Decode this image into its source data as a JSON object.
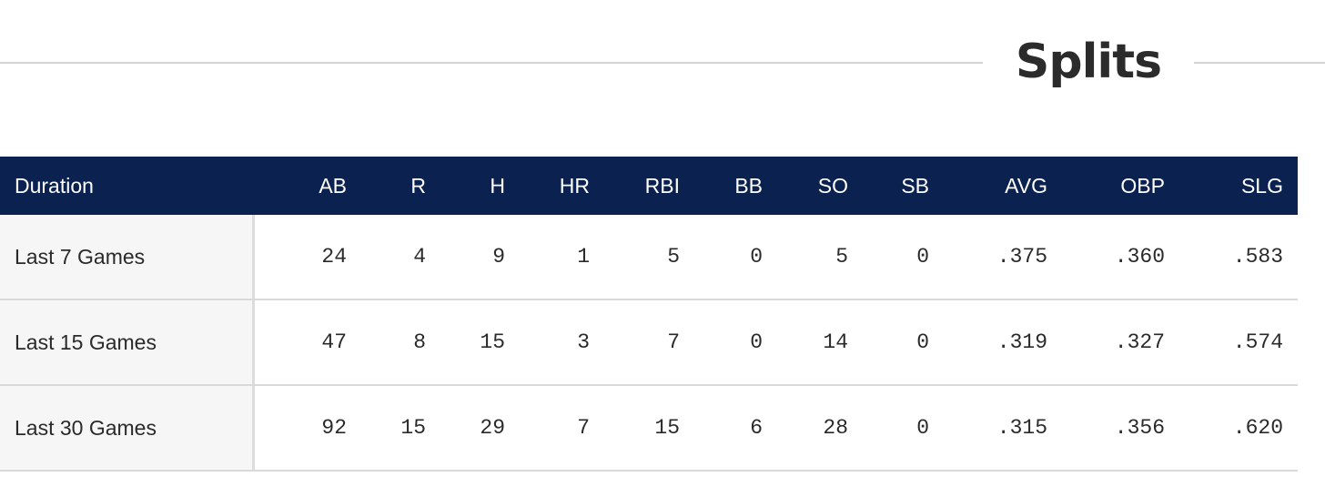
{
  "title": "Splits",
  "colors": {
    "header_bg": "#0b2150",
    "header_text": "#ffffff",
    "label_bg": "#f6f6f6",
    "rule": "#d4d4d4"
  },
  "table": {
    "headers": [
      "Duration",
      "AB",
      "R",
      "H",
      "HR",
      "RBI",
      "BB",
      "SO",
      "SB",
      "AVG",
      "OBP",
      "SLG"
    ],
    "rows": [
      {
        "duration": "Last 7 Games",
        "cells": [
          "24",
          "4",
          "9",
          "1",
          "5",
          "0",
          "5",
          "0",
          ".375",
          ".360",
          ".583"
        ]
      },
      {
        "duration": "Last 15 Games",
        "cells": [
          "47",
          "8",
          "15",
          "3",
          "7",
          "0",
          "14",
          "0",
          ".319",
          ".327",
          ".574"
        ]
      },
      {
        "duration": "Last 30 Games",
        "cells": [
          "92",
          "15",
          "29",
          "7",
          "15",
          "6",
          "28",
          "0",
          ".315",
          ".356",
          ".620"
        ]
      }
    ]
  }
}
